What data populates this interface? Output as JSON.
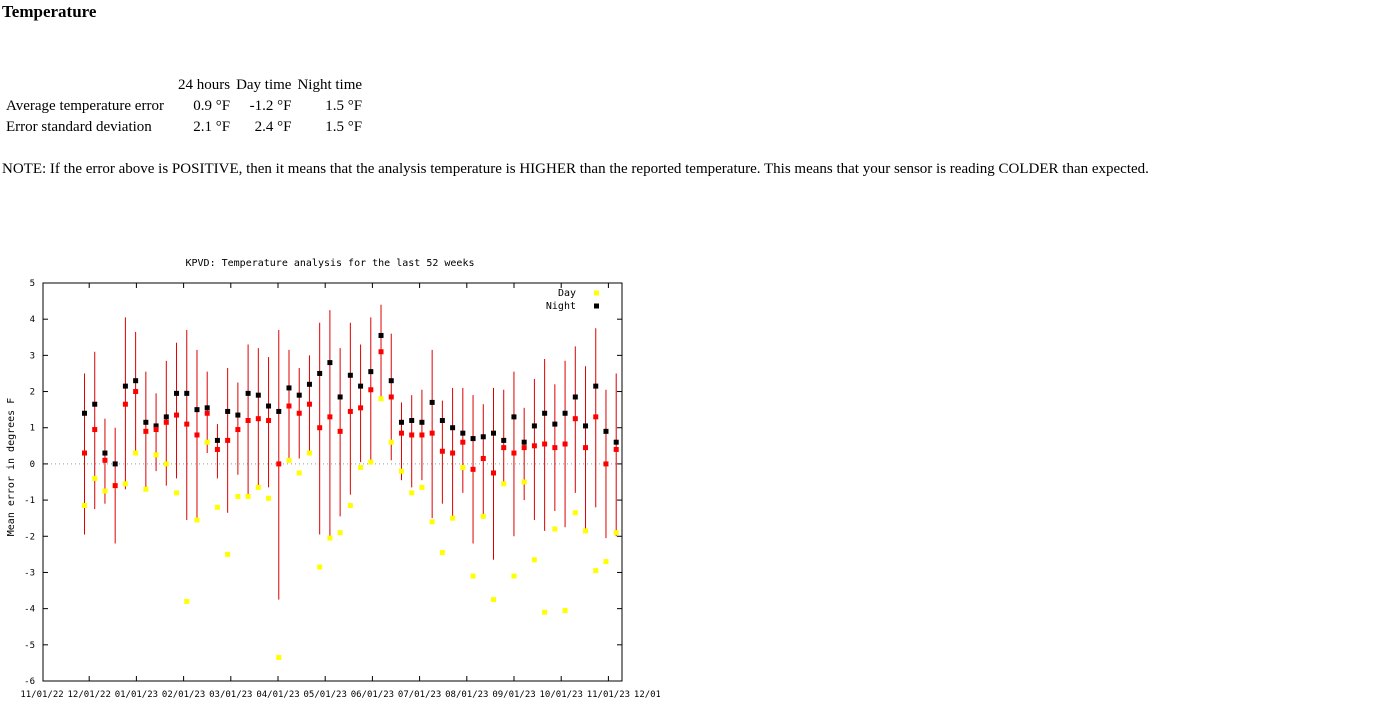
{
  "heading": "Temperature",
  "summary_table": {
    "headers": [
      "",
      "24 hours",
      "Day time",
      "Night time"
    ],
    "rows": [
      {
        "label": "Average temperature error",
        "all": "0.9 °F",
        "day": "-1.2 °F",
        "night": "1.5 °F"
      },
      {
        "label": "Error standard deviation",
        "all": "2.1 °F",
        "day": "2.4 °F",
        "night": "1.5 °F"
      }
    ]
  },
  "note": "NOTE: If the error above is POSITIVE, then it means that the analysis temperature is HIGHER than the reported temperature. This means that your sensor is reading COLDER than expected.",
  "chart_data": {
    "type": "scatter",
    "title": "KPVD: Temperature analysis for the last 52 weeks",
    "ylabel": "Mean error in degrees F",
    "xlabel": "",
    "ylim": [
      -6,
      5
    ],
    "yticks": [
      -6,
      -5,
      -4,
      -3,
      -2,
      -1,
      0,
      1,
      2,
      3,
      4,
      5
    ],
    "xticks": [
      "11/01/22",
      "12/01/22",
      "01/01/23",
      "02/01/23",
      "03/01/23",
      "04/01/23",
      "05/01/23",
      "06/01/23",
      "07/01/23",
      "08/01/23",
      "09/01/23",
      "10/01/23",
      "11/01/23",
      "12/01/23"
    ],
    "zero_line": true,
    "legend": {
      "position": "top-right",
      "entries": [
        "Day",
        "Night"
      ]
    },
    "colors": {
      "day": "#ffff00",
      "night": "#000000",
      "all": "#ff0000",
      "errorbar": "#dd0000",
      "zero": "#999999"
    },
    "weeks": 52,
    "series": [
      {
        "name": "Day",
        "values": [
          -1.15,
          -0.4,
          -0.75,
          -0.6,
          -0.55,
          0.3,
          -0.7,
          0.25,
          0.0,
          -0.8,
          -3.8,
          -1.55,
          0.6,
          -1.2,
          -2.5,
          -0.9,
          -0.9,
          -0.65,
          -0.95,
          -5.35,
          0.1,
          -0.25,
          0.3,
          -2.85,
          -2.05,
          -1.9,
          -1.15,
          -0.1,
          0.05,
          1.8,
          0.6,
          -0.2,
          -0.8,
          -0.65,
          -1.6,
          -2.45,
          -1.5,
          -0.1,
          -3.1,
          -1.45,
          -3.75,
          -0.55,
          -3.1,
          -0.5,
          -2.65,
          -4.1,
          -1.8,
          -4.05,
          -1.35,
          -1.85,
          -2.95,
          -2.7,
          -1.9
        ]
      },
      {
        "name": "Night",
        "values": [
          1.4,
          1.65,
          0.3,
          0.0,
          2.15,
          2.3,
          1.15,
          1.05,
          1.3,
          1.95,
          1.95,
          1.5,
          1.55,
          0.65,
          1.45,
          1.35,
          1.95,
          1.9,
          1.6,
          1.45,
          2.1,
          1.9,
          2.2,
          2.5,
          2.8,
          1.85,
          2.45,
          2.15,
          2.55,
          3.55,
          2.3,
          1.15,
          1.2,
          1.15,
          1.7,
          1.2,
          1.0,
          0.85,
          0.7,
          0.75,
          0.85,
          0.65,
          1.3,
          0.6,
          1.05,
          1.4,
          1.1,
          1.4,
          1.85,
          1.05,
          2.15,
          0.9,
          0.6
        ]
      },
      {
        "name": "24 hours",
        "values": [
          0.3,
          0.95,
          0.1,
          -0.6,
          1.65,
          2.0,
          0.9,
          0.95,
          1.15,
          1.35,
          1.1,
          0.8,
          1.4,
          0.4,
          0.65,
          0.95,
          1.2,
          1.25,
          1.2,
          0.0,
          1.6,
          1.4,
          1.65,
          1.0,
          1.3,
          0.9,
          1.45,
          1.55,
          2.05,
          3.1,
          1.85,
          0.85,
          0.8,
          0.8,
          0.85,
          0.35,
          0.3,
          0.6,
          -0.15,
          0.15,
          -0.25,
          0.45,
          0.3,
          0.45,
          0.5,
          0.55,
          0.45,
          0.55,
          1.25,
          0.45,
          1.3,
          0.0,
          0.4
        ]
      },
      {
        "name": "error_low",
        "values": [
          -1.95,
          -1.25,
          -1.1,
          -2.2,
          -0.7,
          0.35,
          -0.7,
          -0.2,
          -0.6,
          -0.4,
          -1.55,
          -1.5,
          0.3,
          -0.4,
          -1.35,
          -0.3,
          -0.85,
          -0.6,
          -0.65,
          -3.75,
          0.05,
          0.15,
          0.3,
          -1.95,
          -2.05,
          -1.45,
          -0.85,
          0.05,
          0.0,
          1.75,
          0.1,
          -0.45,
          -0.65,
          -0.45,
          -1.5,
          -1.1,
          -1.5,
          -0.8,
          -2.2,
          -1.45,
          -2.65,
          -0.55,
          -2.0,
          -1.0,
          -1.55,
          -1.85,
          -1.3,
          -1.75,
          -0.8,
          -1.8,
          -1.2,
          -2.05,
          -2.0
        ]
      },
      {
        "name": "error_high",
        "values": [
          2.5,
          3.1,
          1.25,
          1.0,
          4.05,
          3.65,
          2.55,
          1.95,
          2.85,
          3.35,
          3.7,
          3.15,
          2.55,
          1.1,
          2.65,
          2.25,
          3.3,
          3.2,
          2.95,
          3.7,
          3.15,
          2.65,
          3.0,
          3.9,
          4.25,
          3.2,
          3.9,
          3.3,
          4.05,
          4.4,
          3.6,
          1.7,
          1.9,
          2.05,
          3.15,
          1.75,
          2.1,
          2.1,
          1.9,
          1.65,
          2.1,
          2.05,
          2.55,
          1.55,
          2.35,
          2.9,
          2.2,
          2.85,
          3.25,
          2.7,
          3.75,
          2.05,
          2.5
        ]
      }
    ]
  }
}
